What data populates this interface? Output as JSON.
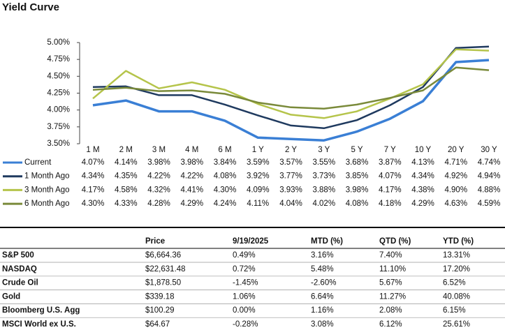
{
  "chart_data": {
    "type": "line",
    "title": "Yield Curve",
    "categories": [
      "1 M",
      "2 M",
      "3 M",
      "4 M",
      "6 M",
      "1 Y",
      "2 Y",
      "3 Y",
      "5 Y",
      "7 Y",
      "10 Y",
      "20 Y",
      "30 Y"
    ],
    "ylim": [
      3.5,
      5.0
    ],
    "yticks": [
      {
        "value": 3.5,
        "label": "3.50%"
      },
      {
        "value": 3.75,
        "label": "3.75%"
      },
      {
        "value": 4.0,
        "label": "4.00%"
      },
      {
        "value": 4.25,
        "label": "4.25%"
      },
      {
        "value": 4.5,
        "label": "4.50%"
      },
      {
        "value": 4.75,
        "label": "4.75%"
      },
      {
        "value": 5.0,
        "label": "5.00%"
      }
    ],
    "series": [
      {
        "name": "Current",
        "color": "#3a7fd5",
        "values": [
          4.07,
          4.14,
          3.98,
          3.98,
          3.84,
          3.59,
          3.57,
          3.55,
          3.68,
          3.87,
          4.13,
          4.71,
          4.74
        ],
        "value_labels": [
          "4.07%",
          "4.14%",
          "3.98%",
          "3.98%",
          "3.84%",
          "3.59%",
          "3.57%",
          "3.55%",
          "3.68%",
          "3.87%",
          "4.13%",
          "4.71%",
          "4.74%"
        ]
      },
      {
        "name": "1 Month Ago",
        "color": "#1f3a5f",
        "values": [
          4.34,
          4.35,
          4.22,
          4.22,
          4.08,
          3.92,
          3.77,
          3.73,
          3.85,
          4.07,
          4.34,
          4.92,
          4.94
        ],
        "value_labels": [
          "4.34%",
          "4.35%",
          "4.22%",
          "4.22%",
          "4.08%",
          "3.92%",
          "3.77%",
          "3.73%",
          "3.85%",
          "4.07%",
          "4.34%",
          "4.92%",
          "4.94%"
        ]
      },
      {
        "name": "3 Month Ago",
        "color": "#b5c44a",
        "values": [
          4.17,
          4.58,
          4.32,
          4.41,
          4.3,
          4.09,
          3.93,
          3.88,
          3.98,
          4.17,
          4.38,
          4.9,
          4.88
        ],
        "value_labels": [
          "4.17%",
          "4.58%",
          "4.32%",
          "4.41%",
          "4.30%",
          "4.09%",
          "3.93%",
          "3.88%",
          "3.98%",
          "4.17%",
          "4.38%",
          "4.90%",
          "4.88%"
        ]
      },
      {
        "name": "6 Month Ago",
        "color": "#7a8a3a",
        "values": [
          4.3,
          4.33,
          4.28,
          4.29,
          4.24,
          4.11,
          4.04,
          4.02,
          4.08,
          4.18,
          4.29,
          4.63,
          4.59
        ],
        "value_labels": [
          "4.30%",
          "4.33%",
          "4.28%",
          "4.29%",
          "4.24%",
          "4.11%",
          "4.04%",
          "4.02%",
          "4.08%",
          "4.18%",
          "4.29%",
          "4.63%",
          "4.59%"
        ]
      }
    ]
  },
  "table": {
    "columns": [
      "Price",
      "9/19/2025",
      "MTD (%)",
      "QTD (%)",
      "YTD (%)"
    ],
    "rows": [
      {
        "name": "S&P 500",
        "cells": [
          "$6,664.36",
          "0.49%",
          "3.16%",
          "7.40%",
          "13.31%"
        ]
      },
      {
        "name": "NASDAQ",
        "cells": [
          "$22,631.48",
          "0.72%",
          "5.48%",
          "11.10%",
          "17.20%"
        ]
      },
      {
        "name": "Crude Oil",
        "cells": [
          "$1,878.50",
          "-1.45%",
          "-2.60%",
          "5.67%",
          "6.52%"
        ]
      },
      {
        "name": "Gold",
        "cells": [
          "$339.18",
          "1.06%",
          "6.64%",
          "11.27%",
          "40.08%"
        ]
      },
      {
        "name": "Bloomberg U.S. Agg",
        "cells": [
          "$100.29",
          "0.00%",
          "1.16%",
          "2.08%",
          "6.15%"
        ]
      },
      {
        "name": "MSCI World ex U.S.",
        "cells": [
          "$64.67",
          "-0.28%",
          "3.08%",
          "6.12%",
          "25.61%"
        ]
      }
    ]
  }
}
